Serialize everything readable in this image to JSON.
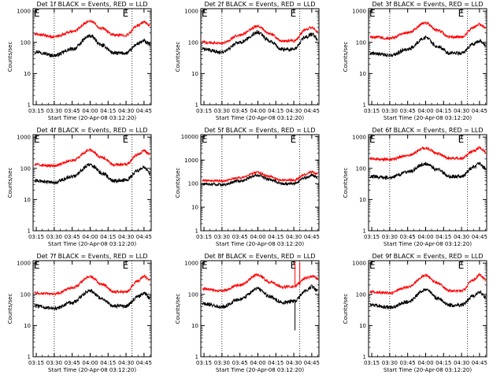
{
  "figure": {
    "ylabel": "Counts/sec",
    "xlabel": "Start Time (20-Apr-08 03:12:20)",
    "colors": {
      "events": "#000000",
      "lld": "#ff0000"
    },
    "marker_label": "E",
    "y_tick_labels": [
      "1",
      "10",
      "100",
      "1000"
    ],
    "x_tick_labels": [
      "03:15",
      "03:30",
      "03:45",
      "04:00",
      "04:15",
      "04:30",
      "04:45"
    ]
  },
  "chart_data": [
    {
      "type": "line",
      "title": "Det 1f BLACK = Events, RED = LLD",
      "ylim": [
        1,
        1200
      ],
      "yscale": "log",
      "grid": false,
      "x_range": [
        "03:12:20",
        "04:51:00"
      ],
      "dotted_lines_x": [
        "03:30",
        "04:35"
      ],
      "series": [
        {
          "name": "Events",
          "x": [
            "03:15",
            "03:30",
            "03:45",
            "04:00",
            "04:10",
            "04:20",
            "04:30",
            "04:40",
            "04:45",
            "04:50"
          ],
          "values": [
            50,
            38,
            60,
            160,
            80,
            45,
            45,
            90,
            110,
            85
          ]
        },
        {
          "name": "LLD",
          "x": [
            "03:15",
            "03:30",
            "03:45",
            "04:00",
            "04:10",
            "04:20",
            "04:30",
            "04:40",
            "04:45",
            "04:50"
          ],
          "values": [
            180,
            150,
            220,
            480,
            280,
            170,
            170,
            350,
            450,
            350
          ]
        }
      ]
    },
    {
      "type": "line",
      "title": "Det 2f BLACK = Events, RED = LLD",
      "ylim": [
        1,
        1200
      ],
      "yscale": "log",
      "grid": false,
      "x_range": [
        "03:12:20",
        "04:51:00"
      ],
      "dotted_lines_x": [
        "03:30",
        "04:35"
      ],
      "series": [
        {
          "name": "Events",
          "x": [
            "03:15",
            "03:30",
            "03:45",
            "04:00",
            "04:10",
            "04:20",
            "04:30",
            "04:40",
            "04:45",
            "04:50"
          ],
          "values": [
            60,
            48,
            100,
            210,
            110,
            60,
            60,
            150,
            180,
            130
          ]
        },
        {
          "name": "LLD",
          "x": [
            "03:15",
            "03:30",
            "03:45",
            "04:00",
            "04:10",
            "04:20",
            "04:30",
            "04:40",
            "04:45",
            "04:50"
          ],
          "values": [
            100,
            95,
            170,
            330,
            190,
            110,
            110,
            250,
            300,
            220
          ]
        }
      ]
    },
    {
      "type": "line",
      "title": "Det 3f BLACK = Events, RED = LLD",
      "ylim": [
        1,
        1200
      ],
      "yscale": "log",
      "grid": false,
      "x_range": [
        "03:12:20",
        "04:51:00"
      ],
      "dotted_lines_x": [
        "03:30",
        "04:35"
      ],
      "series": [
        {
          "name": "Events",
          "x": [
            "03:15",
            "03:30",
            "03:45",
            "04:00",
            "04:10",
            "04:20",
            "04:30",
            "04:40",
            "04:45",
            "04:50"
          ],
          "values": [
            45,
            38,
            60,
            140,
            75,
            45,
            45,
            90,
            110,
            80
          ]
        },
        {
          "name": "LLD",
          "x": [
            "03:15",
            "03:30",
            "03:45",
            "04:00",
            "04:10",
            "04:20",
            "04:30",
            "04:40",
            "04:45",
            "04:50"
          ],
          "values": [
            150,
            135,
            200,
            420,
            240,
            150,
            150,
            300,
            380,
            300
          ]
        }
      ]
    },
    {
      "type": "line",
      "title": "Det 4f BLACK = Events, RED = LLD",
      "ylim": [
        1,
        1200
      ],
      "yscale": "log",
      "grid": false,
      "x_range": [
        "03:12:20",
        "04:51:00"
      ],
      "dotted_lines_x": [
        "03:30",
        "04:35"
      ],
      "series": [
        {
          "name": "Events",
          "x": [
            "03:15",
            "03:30",
            "03:45",
            "04:00",
            "04:10",
            "04:20",
            "04:30",
            "04:40",
            "04:45",
            "04:50"
          ],
          "values": [
            40,
            35,
            55,
            130,
            70,
            40,
            42,
            85,
            110,
            70
          ]
        },
        {
          "name": "LLD",
          "x": [
            "03:15",
            "03:30",
            "03:45",
            "04:00",
            "04:10",
            "04:20",
            "04:30",
            "04:40",
            "04:45",
            "04:50"
          ],
          "values": [
            130,
            120,
            180,
            380,
            220,
            130,
            135,
            280,
            370,
            280
          ]
        }
      ]
    },
    {
      "type": "line",
      "title": "Det 5f BLACK = Events, RED = LLD",
      "ylim": [
        1,
        12000
      ],
      "yscale": "log",
      "grid": false,
      "x_range": [
        "03:12:20",
        "04:51:00"
      ],
      "dotted_lines_x": [
        "03:30",
        "04:35"
      ],
      "series": [
        {
          "name": "Events",
          "x": [
            "03:15",
            "03:30",
            "03:45",
            "04:00",
            "04:10",
            "04:20",
            "04:30",
            "04:40",
            "04:45",
            "04:50"
          ],
          "values": [
            95,
            90,
            130,
            230,
            150,
            100,
            100,
            180,
            230,
            180
          ]
        },
        {
          "name": "LLD",
          "x": [
            "03:15",
            "03:30",
            "03:45",
            "04:00",
            "04:10",
            "04:20",
            "04:30",
            "04:40",
            "04:45",
            "04:50"
          ],
          "values": [
            140,
            130,
            180,
            300,
            200,
            140,
            140,
            250,
            320,
            250
          ]
        }
      ]
    },
    {
      "type": "line",
      "title": "Det 6f BLACK = Events, RED = LLD",
      "ylim": [
        1,
        1200
      ],
      "yscale": "log",
      "grid": false,
      "x_range": [
        "03:12:20",
        "04:51:00"
      ],
      "dotted_lines_x": [
        "03:30",
        "04:35"
      ],
      "series": [
        {
          "name": "Events",
          "x": [
            "03:15",
            "03:30",
            "03:45",
            "04:00",
            "04:10",
            "04:20",
            "04:30",
            "04:40",
            "04:45",
            "04:50"
          ],
          "values": [
            55,
            50,
            75,
            140,
            90,
            55,
            55,
            110,
            140,
            100
          ]
        },
        {
          "name": "LLD",
          "x": [
            "03:15",
            "03:30",
            "03:45",
            "04:00",
            "04:10",
            "04:20",
            "04:30",
            "04:40",
            "04:45",
            "04:50"
          ],
          "values": [
            200,
            190,
            260,
            450,
            300,
            210,
            210,
            360,
            450,
            340
          ]
        }
      ]
    },
    {
      "type": "line",
      "title": "Det 7f BLACK = Events, RED = LLD",
      "ylim": [
        1,
        1200
      ],
      "yscale": "log",
      "grid": false,
      "x_range": [
        "03:12:20",
        "04:51:00"
      ],
      "dotted_lines_x": [
        "03:30",
        "04:35"
      ],
      "series": [
        {
          "name": "Events",
          "x": [
            "03:15",
            "03:30",
            "03:45",
            "04:00",
            "04:10",
            "04:20",
            "04:30",
            "04:40",
            "04:45",
            "04:50"
          ],
          "values": [
            42,
            35,
            55,
            130,
            70,
            42,
            42,
            85,
            110,
            75
          ]
        },
        {
          "name": "LLD",
          "x": [
            "03:15",
            "03:30",
            "03:45",
            "04:00",
            "04:10",
            "04:20",
            "04:30",
            "04:40",
            "04:45",
            "04:50"
          ],
          "values": [
            110,
            100,
            160,
            370,
            210,
            120,
            120,
            270,
            380,
            280
          ]
        }
      ]
    },
    {
      "type": "line",
      "title": "Det 8f BLACK = Events, RED = LLD",
      "ylim": [
        1,
        1200
      ],
      "yscale": "log",
      "grid": false,
      "x_range": [
        "03:12:20",
        "04:51:00"
      ],
      "dotted_lines_x": [
        "03:30",
        "04:35"
      ],
      "series": [
        {
          "name": "Events",
          "x": [
            "03:15",
            "03:30",
            "03:45",
            "04:00",
            "04:10",
            "04:20",
            "04:30",
            "04:40",
            "04:45",
            "04:50"
          ],
          "values": [
            50,
            40,
            70,
            150,
            85,
            55,
            60,
            130,
            180,
            130
          ]
        },
        {
          "name": "LLD",
          "x": [
            "03:15",
            "03:30",
            "03:45",
            "04:00",
            "04:10",
            "04:20",
            "04:30",
            "04:40",
            "04:45",
            "04:50"
          ],
          "values": [
            150,
            130,
            200,
            420,
            250,
            170,
            180,
            330,
            380,
            320
          ]
        }
      ],
      "spikes": [
        {
          "series": "LLD",
          "x": "04:31",
          "from": 180,
          "to": 1100
        },
        {
          "series": "LLD",
          "x": "04:35",
          "from": 190,
          "to": 1100
        },
        {
          "series": "Events",
          "x": "04:31",
          "from": 60,
          "to": 7
        }
      ]
    },
    {
      "type": "line",
      "title": "Det 9f BLACK = Events, RED = LLD",
      "ylim": [
        1,
        1200
      ],
      "yscale": "log",
      "grid": false,
      "x_range": [
        "03:12:20",
        "04:51:00"
      ],
      "dotted_lines_x": [
        "03:30",
        "04:35"
      ],
      "series": [
        {
          "name": "Events",
          "x": [
            "03:15",
            "03:30",
            "03:45",
            "04:00",
            "04:10",
            "04:20",
            "04:30",
            "04:40",
            "04:45",
            "04:50"
          ],
          "values": [
            45,
            38,
            58,
            140,
            75,
            45,
            45,
            90,
            120,
            80
          ]
        },
        {
          "name": "LLD",
          "x": [
            "03:15",
            "03:30",
            "03:45",
            "04:00",
            "04:10",
            "04:20",
            "04:30",
            "04:40",
            "04:45",
            "04:50"
          ],
          "values": [
            120,
            110,
            170,
            400,
            230,
            130,
            130,
            290,
            420,
            300
          ]
        }
      ]
    }
  ]
}
